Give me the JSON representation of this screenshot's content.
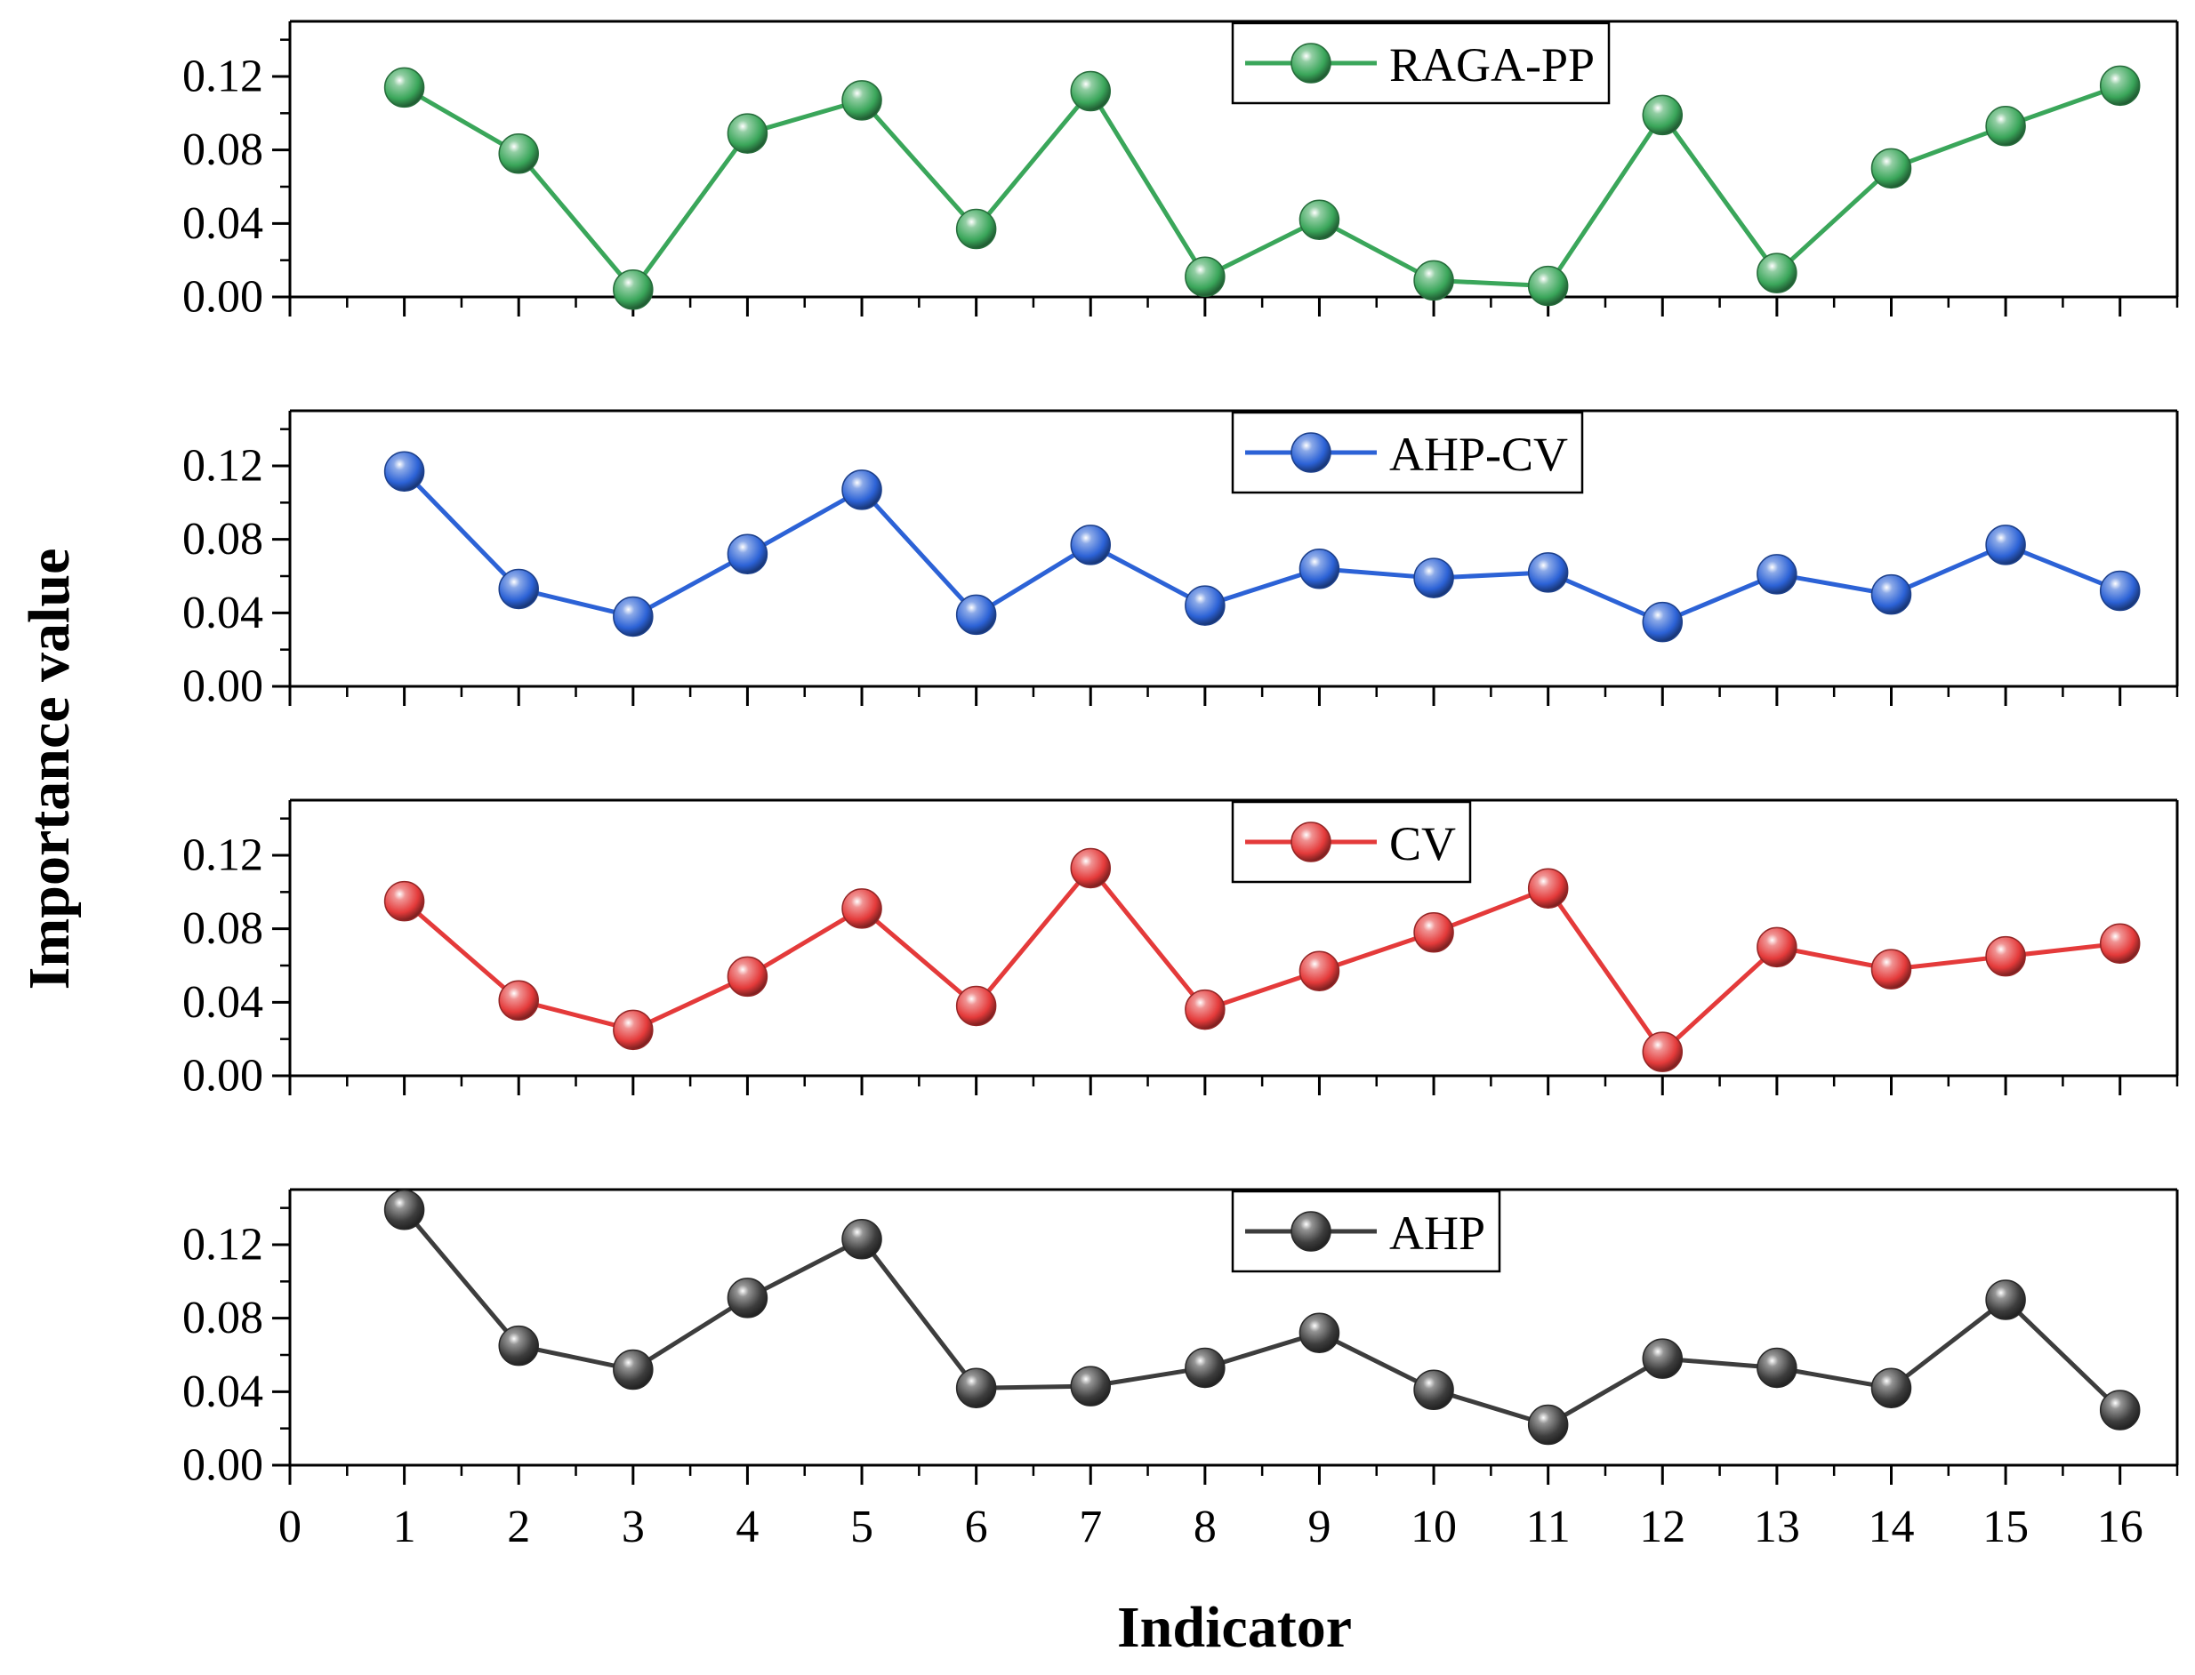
{
  "chart_data": {
    "type": "line",
    "layout": "stacked-panels",
    "xlabel": "Indicator",
    "ylabel": "Importance value",
    "xlim": [
      0,
      16.5
    ],
    "ylim": [
      0,
      0.15
    ],
    "x_ticks": [
      0,
      1,
      2,
      3,
      4,
      5,
      6,
      7,
      8,
      9,
      10,
      11,
      12,
      13,
      14,
      15,
      16
    ],
    "x_tick_labels": [
      "0",
      "1",
      "2",
      "3",
      "4",
      "5",
      "6",
      "7",
      "8",
      "9",
      "10",
      "11",
      "12",
      "13",
      "14",
      "15",
      "16"
    ],
    "y_ticks": [
      0,
      0.04,
      0.08,
      0.12
    ],
    "y_tick_labels": [
      "0.00",
      "0.04",
      "0.08",
      "0.12"
    ],
    "x": [
      1,
      2,
      3,
      4,
      5,
      6,
      7,
      8,
      9,
      10,
      11,
      12,
      13,
      14,
      15,
      16
    ],
    "series": [
      {
        "name": "RAGA-PP",
        "color": "#3aa65a",
        "legend": "top-center",
        "values": [
          0.114,
          0.078,
          0.004,
          0.089,
          0.107,
          0.037,
          0.112,
          0.011,
          0.042,
          0.009,
          0.006,
          0.099,
          0.013,
          0.07,
          0.093,
          0.115
        ]
      },
      {
        "name": "AHP-CV",
        "color": "#2c62d6",
        "legend": "top-center",
        "values": [
          0.117,
          0.053,
          0.038,
          0.072,
          0.107,
          0.039,
          0.077,
          0.044,
          0.064,
          0.059,
          0.062,
          0.035,
          0.061,
          0.05,
          0.077,
          0.052
        ]
      },
      {
        "name": "CV",
        "color": "#e43a3a",
        "legend": "top-center",
        "values": [
          0.095,
          0.041,
          0.025,
          0.054,
          0.091,
          0.038,
          0.113,
          0.036,
          0.057,
          0.078,
          0.102,
          0.013,
          0.07,
          0.058,
          0.065,
          0.072
        ]
      },
      {
        "name": "AHP",
        "color": "#3d3d3d",
        "legend": "top-center",
        "values": [
          0.139,
          0.065,
          0.052,
          0.091,
          0.123,
          0.042,
          0.043,
          0.053,
          0.072,
          0.041,
          0.022,
          0.058,
          0.053,
          0.042,
          0.09,
          0.03
        ]
      }
    ]
  }
}
